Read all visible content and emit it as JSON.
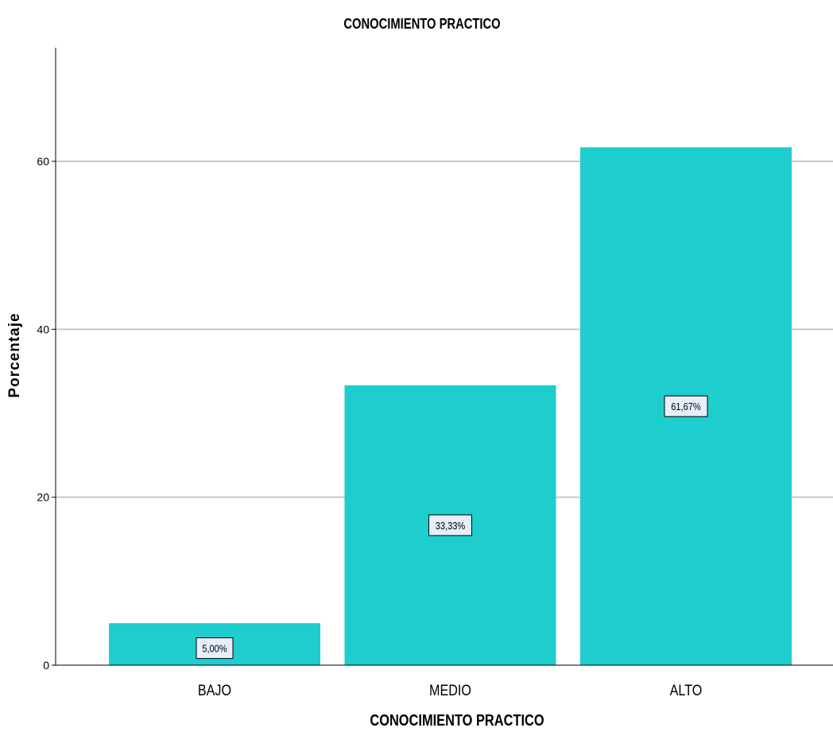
{
  "chart_data": {
    "type": "bar",
    "title": "CONOCIMIENTO PRACTICO",
    "xlabel": "CONOCIMIENTO PRACTICO",
    "ylabel": "Porcentaje",
    "categories": [
      "BAJO",
      "MEDIO",
      "ALTO"
    ],
    "values": [
      5.0,
      33.33,
      61.67
    ],
    "data_labels": [
      "5,00%",
      "33,33%",
      "61,67%"
    ],
    "yticks": [
      0,
      20,
      40,
      60
    ],
    "ylim": [
      0,
      73
    ],
    "grid": true,
    "legend": "none",
    "bar_color": "#1ECDCD",
    "grid_color": "#C8C8C8",
    "label_box_color": "#E6EEFA"
  }
}
